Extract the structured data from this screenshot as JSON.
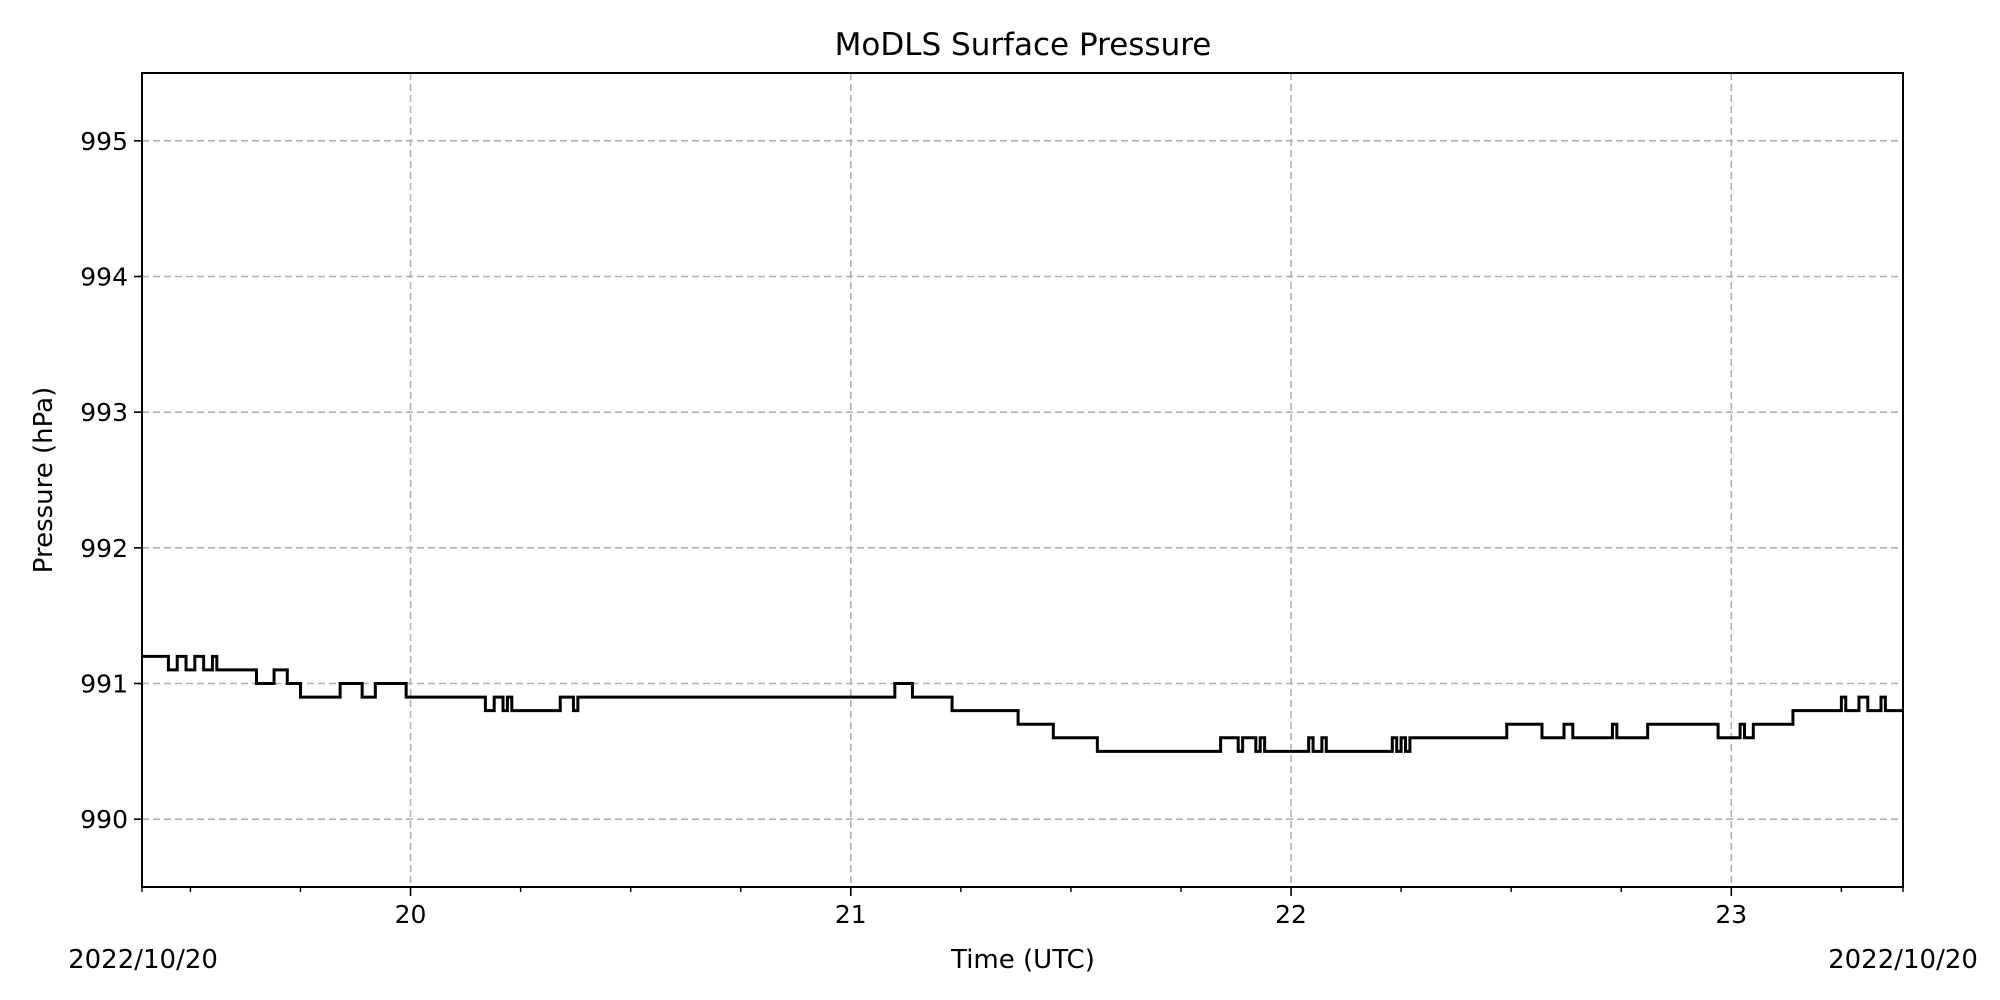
{
  "chart_data": {
    "type": "line",
    "title": "MoDLS Surface Pressure",
    "xlabel": "Time (UTC)",
    "ylabel": "Pressure (hPa)",
    "corner_labels": {
      "left": "2022/10/20",
      "right": "2022/10/20"
    },
    "xlim": [
      19.39,
      23.39
    ],
    "ylim": [
      989.5,
      995.5
    ],
    "x_ticks": [
      {
        "value": 20,
        "label": "20"
      },
      {
        "value": 21,
        "label": "21"
      },
      {
        "value": 22,
        "label": "22"
      },
      {
        "value": 23,
        "label": "23"
      }
    ],
    "x_minor_ticks": [
      19.5,
      19.75,
      20.25,
      20.5,
      20.75,
      21.25,
      21.5,
      21.75,
      22.25,
      22.5,
      22.75,
      23.25
    ],
    "y_ticks": [
      {
        "value": 990,
        "label": "990"
      },
      {
        "value": 991,
        "label": "991"
      },
      {
        "value": 992,
        "label": "992"
      },
      {
        "value": 993,
        "label": "993"
      },
      {
        "value": 994,
        "label": "994"
      },
      {
        "value": 995,
        "label": "995"
      }
    ],
    "grid": true,
    "line_color": "#000000",
    "grid_color": "#b0b0b0",
    "series": [
      {
        "step": "post",
        "x": [
          19.39,
          19.45,
          19.47,
          19.49,
          19.51,
          19.53,
          19.55,
          19.56,
          19.65,
          19.69,
          19.72,
          19.75,
          19.84,
          19.89,
          19.92,
          19.93,
          19.99,
          20.17,
          20.19,
          20.21,
          20.22,
          20.23,
          20.26,
          20.34,
          20.37,
          20.38,
          21.1,
          21.11,
          21.14,
          21.23,
          21.38,
          21.46,
          21.56,
          21.84,
          21.88,
          21.89,
          21.92,
          21.93,
          21.94,
          21.98,
          22.04,
          22.05,
          22.07,
          22.08,
          22.23,
          22.24,
          22.25,
          22.26,
          22.27,
          22.49,
          22.57,
          22.62,
          22.64,
          22.73,
          22.74,
          22.81,
          22.97,
          23.02,
          23.03,
          23.05,
          23.14,
          23.25,
          23.26,
          23.29,
          23.31,
          23.34,
          23.35
        ],
        "values": [
          991.2,
          991.1,
          991.2,
          991.1,
          991.2,
          991.1,
          991.2,
          991.1,
          991.0,
          991.1,
          991.0,
          990.9,
          991.0,
          990.9,
          991.0,
          991.0,
          990.9,
          990.8,
          990.9,
          990.8,
          990.9,
          990.8,
          990.8,
          990.9,
          990.8,
          990.9,
          991.0,
          991.0,
          990.9,
          990.8,
          990.7,
          990.6,
          990.5,
          990.6,
          990.5,
          990.6,
          990.5,
          990.6,
          990.5,
          990.5,
          990.6,
          990.5,
          990.6,
          990.5,
          990.6,
          990.5,
          990.6,
          990.5,
          990.6,
          990.7,
          990.6,
          990.7,
          990.6,
          990.7,
          990.6,
          990.7,
          990.6,
          990.7,
          990.6,
          990.7,
          990.8,
          990.9,
          990.8,
          990.9,
          990.8,
          990.9,
          990.8
        ],
        "x_end": 23.39
      }
    ]
  }
}
